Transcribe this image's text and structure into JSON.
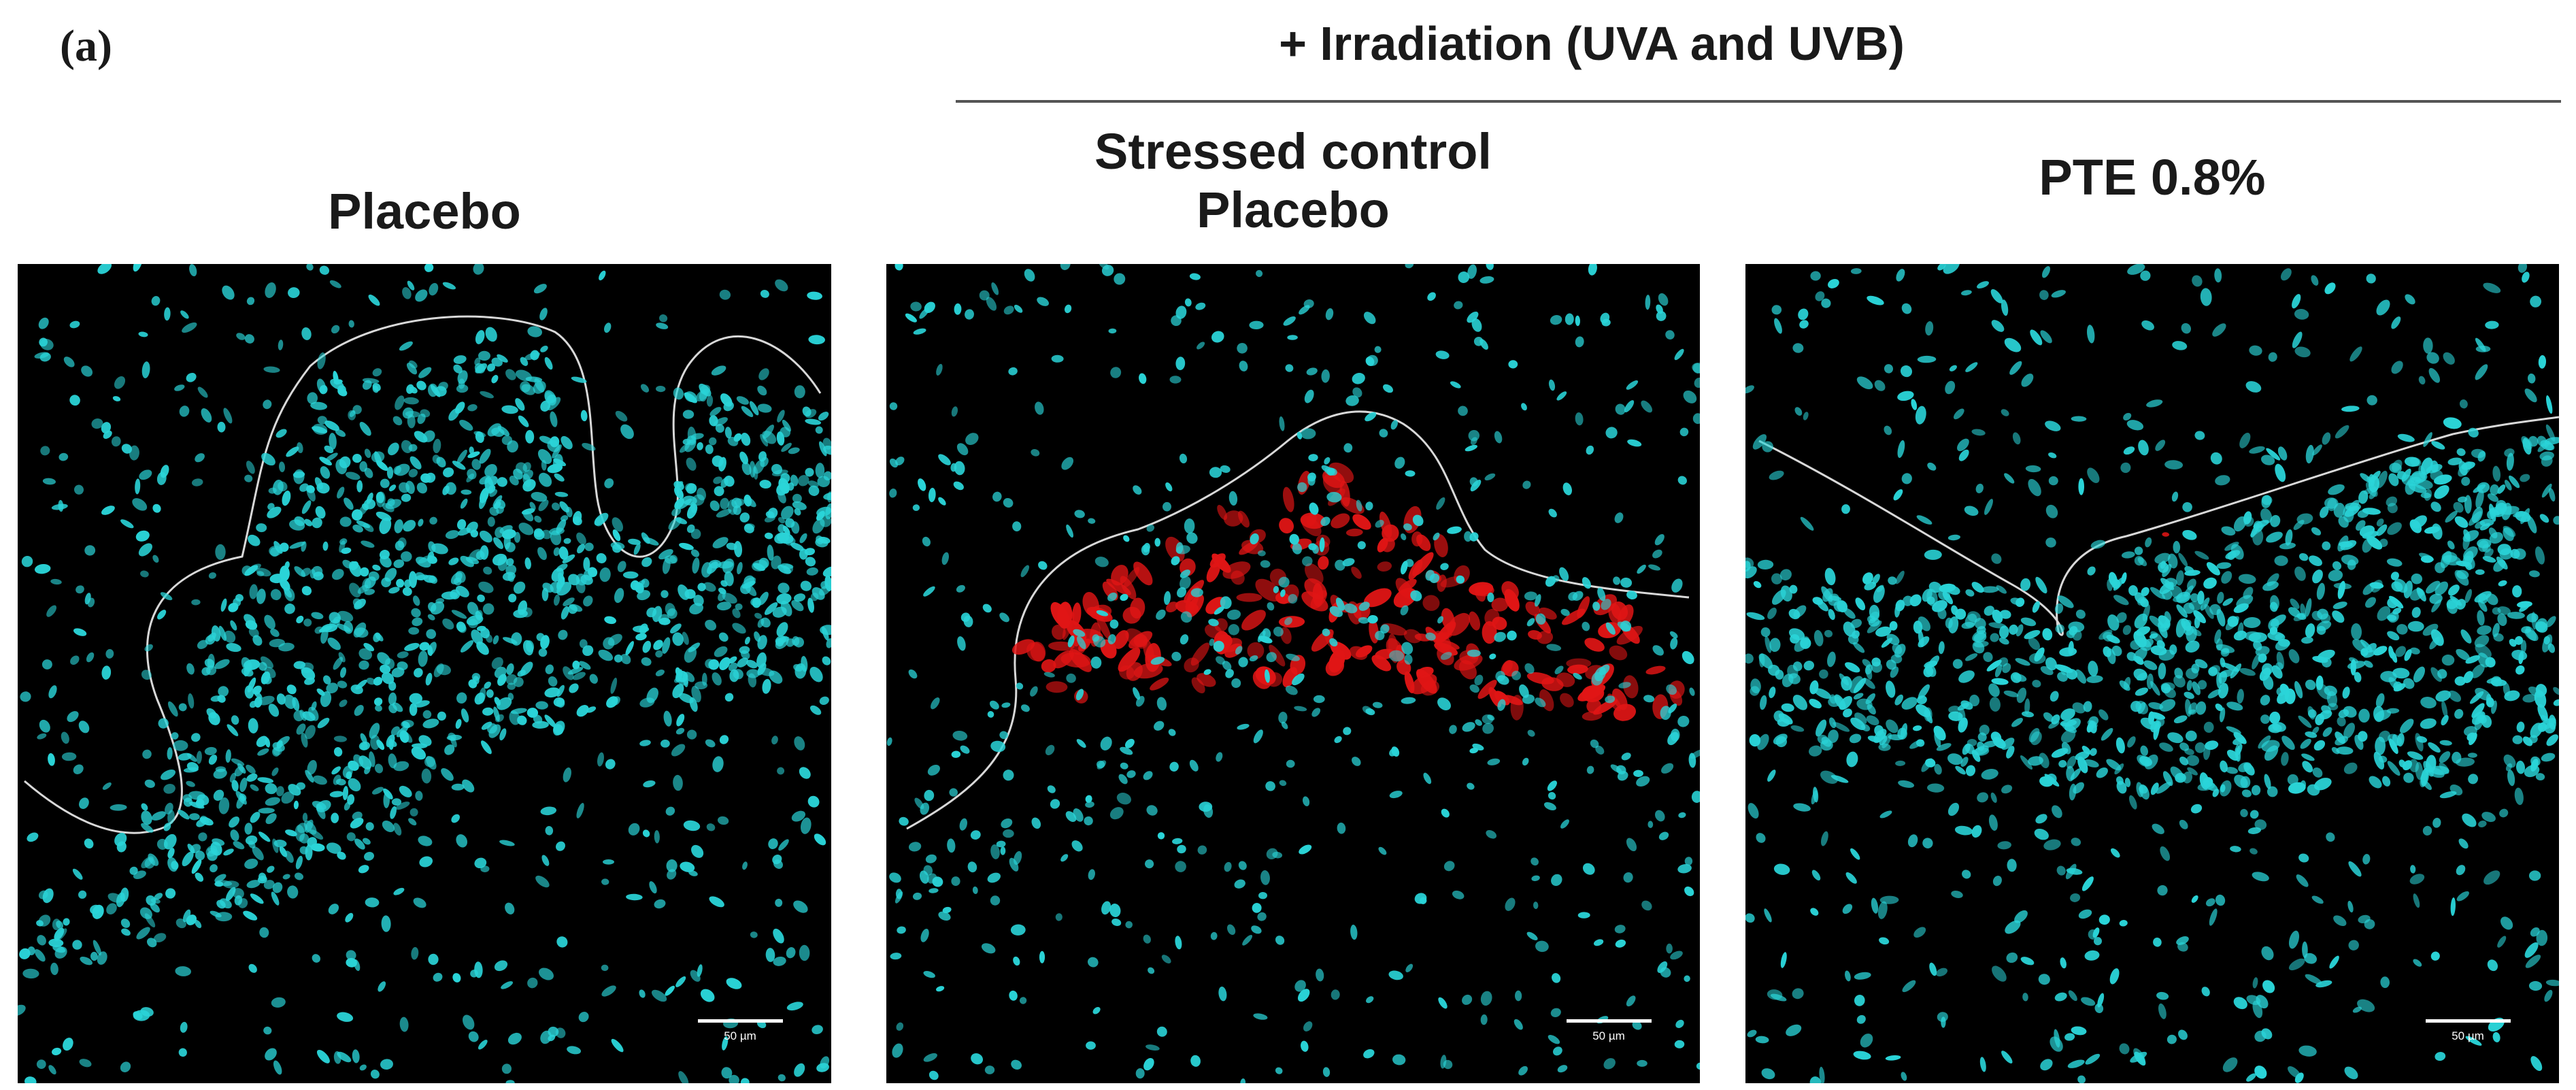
{
  "figure": {
    "panel_letter": "(a)",
    "group_header": "+ Irradiation (UVA and UVB)",
    "columns": [
      {
        "title_lines": [
          "Placebo"
        ],
        "scale_bar": "50 µm"
      },
      {
        "title_lines": [
          "Stressed control",
          "Placebo"
        ],
        "scale_bar": "50 µm"
      },
      {
        "title_lines": [
          "PTE 0.8%"
        ],
        "scale_bar": "50 µm"
      }
    ]
  },
  "colors": {
    "background": "#ffffff",
    "panel_background": "#000000",
    "nuclei": "#2ad4d8",
    "stain_red": "#e01515",
    "outline": "#d8d8d8",
    "rule": "#555555"
  }
}
